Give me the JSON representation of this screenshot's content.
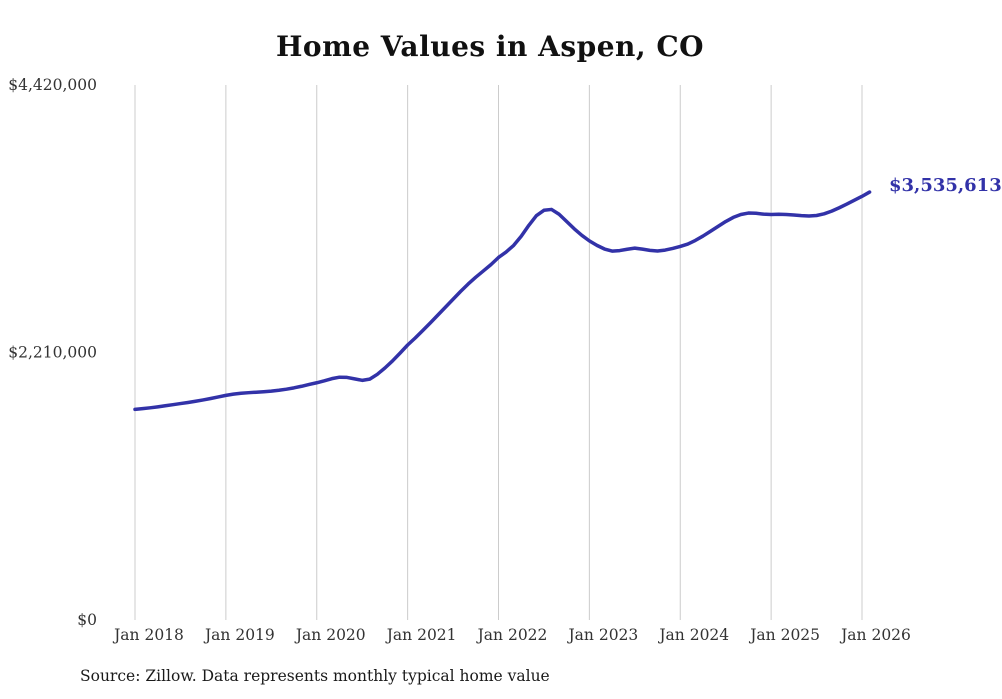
{
  "page": {
    "title": "Home Values in Aspen, CO",
    "source_note": "Source: Zillow. Data represents monthly typical home value",
    "end_label": "$3,535,613"
  },
  "colors": {
    "line": "#3232a8",
    "grid": "#cccccc",
    "tick_text": "#333333",
    "annotation": "#3232a8"
  },
  "chart_data": {
    "type": "line",
    "title": "Home Values in Aspen, CO",
    "xlabel": "",
    "ylabel": "",
    "ylim": [
      0,
      4420000
    ],
    "grid": "vertical-only",
    "legend": "none",
    "x_ticks": [
      "Jan 2018",
      "Jan 2019",
      "Jan 2020",
      "Jan 2021",
      "Jan 2022",
      "Jan 2023",
      "Jan 2024",
      "Jan 2025",
      "Jan 2026"
    ],
    "y_ticks": [
      {
        "label": "$0",
        "value": 0
      },
      {
        "label": "$2,210,000",
        "value": 2210000
      },
      {
        "label": "$4,420,000",
        "value": 4420000
      }
    ],
    "annotation": {
      "text": "$3,535,613",
      "value": 3535613
    },
    "series": [
      {
        "name": "Typical home value (monthly)",
        "start_month": "2018-01",
        "cadence": "monthly",
        "values": [
          1740000,
          1746000,
          1753000,
          1761000,
          1770000,
          1779000,
          1788000,
          1797000,
          1807000,
          1818000,
          1830000,
          1843000,
          1856000,
          1866000,
          1873000,
          1878000,
          1882000,
          1886000,
          1891000,
          1898000,
          1907000,
          1918000,
          1931000,
          1946000,
          1960000,
          1976000,
          1994000,
          2006000,
          2004000,
          1992000,
          1980000,
          1990000,
          2030000,
          2082000,
          2140000,
          2205000,
          2272000,
          2330000,
          2392000,
          2455000,
          2520000,
          2585000,
          2650000,
          2715000,
          2776000,
          2832000,
          2884000,
          2936000,
          2995000,
          3040000,
          3095000,
          3170000,
          3260000,
          3340000,
          3385000,
          3392000,
          3352000,
          3292000,
          3232000,
          3178000,
          3132000,
          3095000,
          3065000,
          3048000,
          3052000,
          3063000,
          3072000,
          3064000,
          3054000,
          3049000,
          3056000,
          3070000,
          3086000,
          3106000,
          3136000,
          3172000,
          3212000,
          3252000,
          3292000,
          3326000,
          3350000,
          3362000,
          3360000,
          3353000,
          3350000,
          3352000,
          3350000,
          3346000,
          3341000,
          3338000,
          3342000,
          3356000,
          3378000,
          3406000,
          3436000,
          3468000,
          3500000,
          3535613
        ]
      }
    ]
  }
}
